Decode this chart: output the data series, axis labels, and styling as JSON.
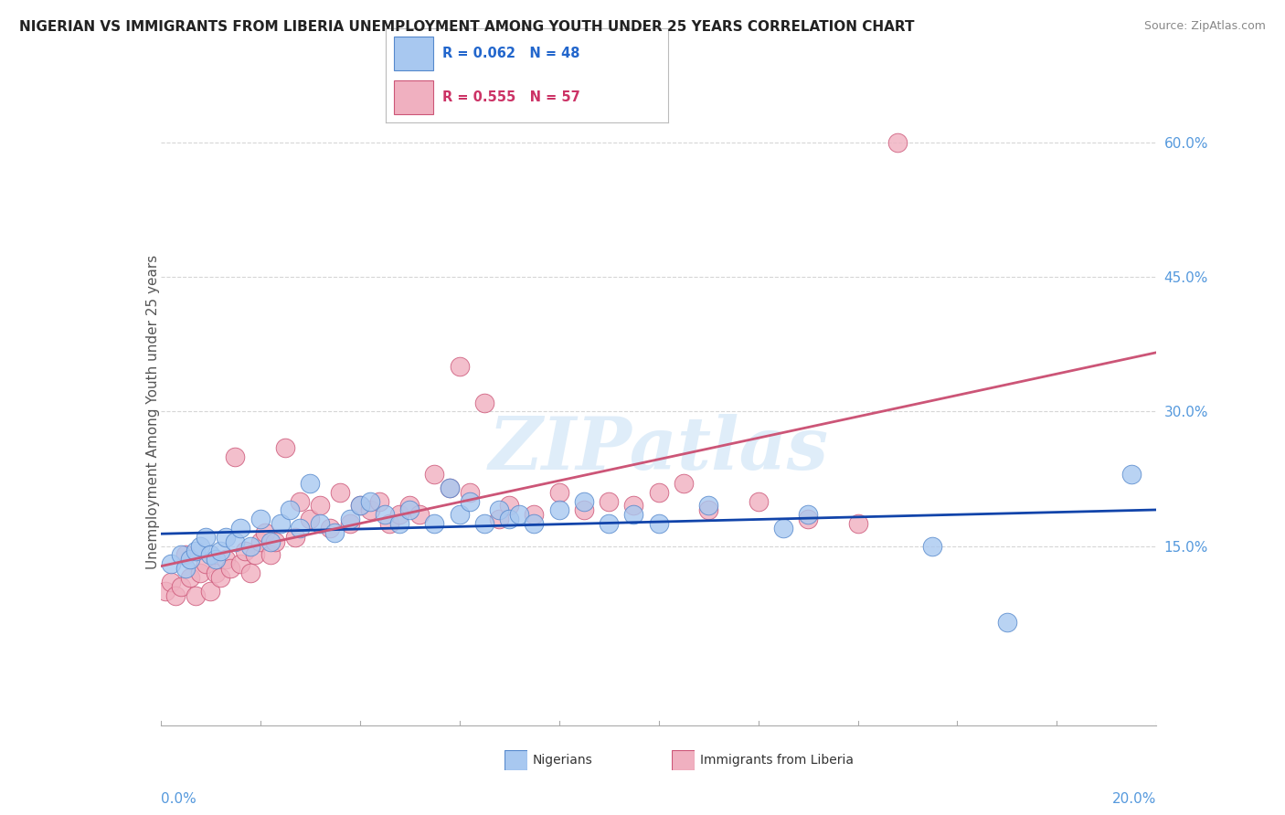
{
  "title": "NIGERIAN VS IMMIGRANTS FROM LIBERIA UNEMPLOYMENT AMONG YOUTH UNDER 25 YEARS CORRELATION CHART",
  "source": "Source: ZipAtlas.com",
  "ylabel": "Unemployment Among Youth under 25 years",
  "yticks": [
    0.0,
    0.15,
    0.3,
    0.45,
    0.6
  ],
  "ytick_labels": [
    "",
    "15.0%",
    "30.0%",
    "45.0%",
    "60.0%"
  ],
  "xmin": 0.0,
  "xmax": 0.2,
  "ymin": -0.05,
  "ymax": 0.65,
  "blue_color": "#a8c8f0",
  "blue_edge": "#5588cc",
  "blue_trend": "#1144aa",
  "pink_color": "#f0b0c0",
  "pink_edge": "#cc5577",
  "pink_trend": "#cc5577",
  "blue_x": [
    0.002,
    0.004,
    0.005,
    0.006,
    0.007,
    0.008,
    0.009,
    0.01,
    0.011,
    0.012,
    0.013,
    0.015,
    0.016,
    0.018,
    0.02,
    0.022,
    0.024,
    0.026,
    0.028,
    0.03,
    0.032,
    0.035,
    0.038,
    0.04,
    0.042,
    0.045,
    0.048,
    0.05,
    0.055,
    0.058,
    0.06,
    0.062,
    0.065,
    0.068,
    0.07,
    0.072,
    0.075,
    0.08,
    0.085,
    0.09,
    0.095,
    0.1,
    0.11,
    0.125,
    0.13,
    0.155,
    0.17,
    0.195
  ],
  "blue_y": [
    0.13,
    0.14,
    0.125,
    0.135,
    0.145,
    0.15,
    0.16,
    0.14,
    0.135,
    0.145,
    0.16,
    0.155,
    0.17,
    0.15,
    0.18,
    0.155,
    0.175,
    0.19,
    0.17,
    0.22,
    0.175,
    0.165,
    0.18,
    0.195,
    0.2,
    0.185,
    0.175,
    0.19,
    0.175,
    0.215,
    0.185,
    0.2,
    0.175,
    0.19,
    0.18,
    0.185,
    0.175,
    0.19,
    0.2,
    0.175,
    0.185,
    0.175,
    0.195,
    0.17,
    0.185,
    0.15,
    0.065,
    0.23
  ],
  "pink_x": [
    0.001,
    0.002,
    0.003,
    0.004,
    0.005,
    0.006,
    0.007,
    0.008,
    0.009,
    0.01,
    0.011,
    0.012,
    0.013,
    0.014,
    0.015,
    0.016,
    0.017,
    0.018,
    0.019,
    0.02,
    0.021,
    0.022,
    0.023,
    0.025,
    0.027,
    0.028,
    0.03,
    0.032,
    0.034,
    0.036,
    0.038,
    0.04,
    0.042,
    0.044,
    0.046,
    0.048,
    0.05,
    0.052,
    0.055,
    0.058,
    0.06,
    0.062,
    0.065,
    0.068,
    0.07,
    0.075,
    0.08,
    0.085,
    0.09,
    0.095,
    0.1,
    0.105,
    0.11,
    0.12,
    0.13,
    0.14,
    0.148
  ],
  "pink_y": [
    0.1,
    0.11,
    0.095,
    0.105,
    0.14,
    0.115,
    0.095,
    0.12,
    0.13,
    0.1,
    0.12,
    0.115,
    0.135,
    0.125,
    0.25,
    0.13,
    0.145,
    0.12,
    0.14,
    0.155,
    0.165,
    0.14,
    0.155,
    0.26,
    0.16,
    0.2,
    0.18,
    0.195,
    0.17,
    0.21,
    0.175,
    0.195,
    0.19,
    0.2,
    0.175,
    0.185,
    0.195,
    0.185,
    0.23,
    0.215,
    0.35,
    0.21,
    0.31,
    0.18,
    0.195,
    0.185,
    0.21,
    0.19,
    0.2,
    0.195,
    0.21,
    0.22,
    0.19,
    0.2,
    0.18,
    0.175,
    0.6
  ],
  "watermark_text": "ZIPatlas",
  "background_color": "#ffffff",
  "grid_color": "#cccccc"
}
